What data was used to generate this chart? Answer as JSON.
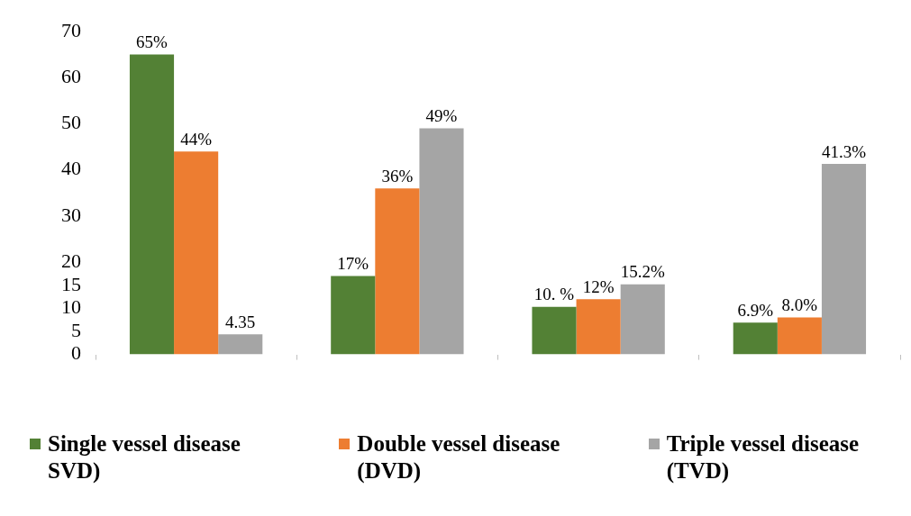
{
  "chart_data": {
    "type": "bar",
    "categories": [
      null,
      null,
      null,
      null
    ],
    "series": [
      {
        "name": "Single vessel disease SVD)",
        "color": "#538135",
        "values": [
          65,
          17,
          10.3,
          6.9
        ],
        "value_labels": [
          "65%",
          "17%",
          "10. %",
          "6.9%"
        ]
      },
      {
        "name": "Double vessel disease (DVD)",
        "color": "#ed7d31",
        "values": [
          44,
          36,
          12,
          8.0
        ],
        "value_labels": [
          "44%",
          "36%",
          "12%",
          "8.0%"
        ]
      },
      {
        "name": "Triple vessel disease (TVD)",
        "color": "#a5a5a5",
        "values": [
          4.35,
          49,
          15.2,
          41.3
        ],
        "value_labels": [
          "4.35",
          "49%",
          "15.2%",
          "41.3%"
        ]
      }
    ],
    "ylim": [
      0,
      70
    ],
    "yticks": [
      0,
      5,
      10,
      15,
      20,
      30,
      40,
      50,
      60,
      70
    ],
    "grid": false,
    "legend": "bottom"
  }
}
